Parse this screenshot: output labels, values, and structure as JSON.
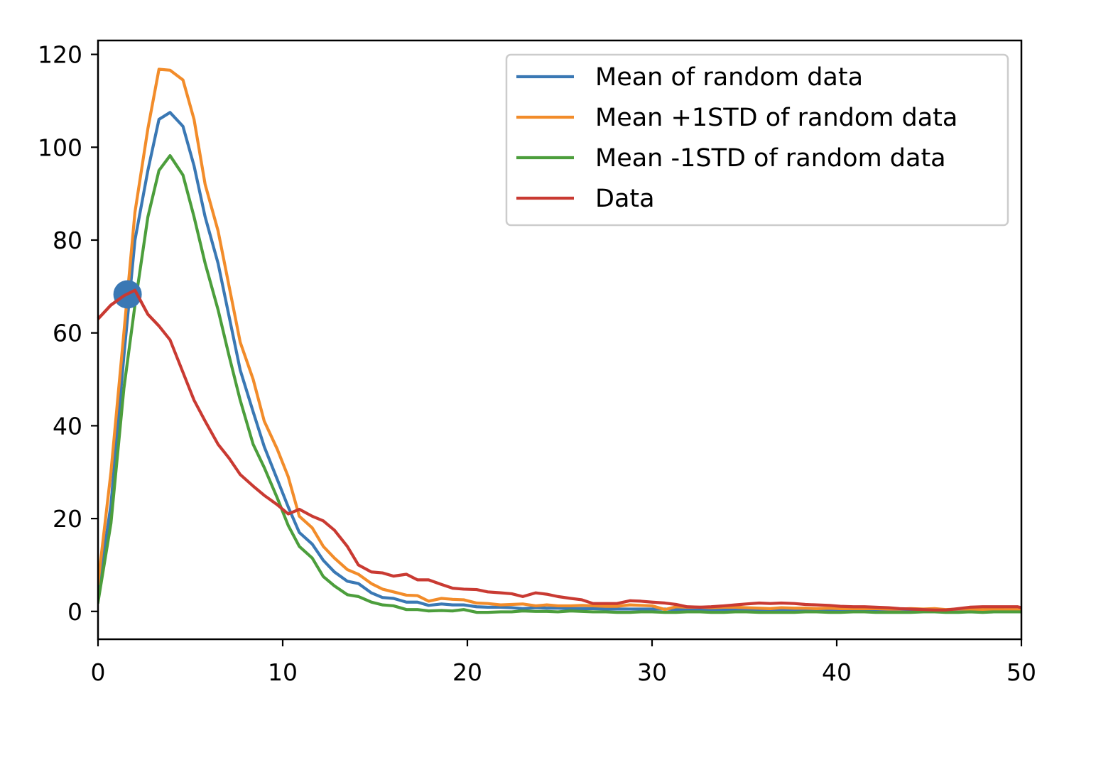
{
  "chart_data": {
    "type": "line",
    "xlim": [
      0,
      50
    ],
    "ylim": [
      -6,
      123
    ],
    "x_ticks": [
      "0",
      "10",
      "20",
      "30",
      "40",
      "50"
    ],
    "y_ticks": [
      "0",
      "20",
      "40",
      "60",
      "80",
      "100",
      "120"
    ],
    "x_tick_values": [
      0,
      10,
      20,
      30,
      40,
      50
    ],
    "y_tick_values": [
      0,
      20,
      40,
      60,
      80,
      100,
      120
    ],
    "grid": false,
    "legend_position": "top-right",
    "marker_point": {
      "x": 1.6,
      "y": 68.3,
      "color": "#3a78b4"
    },
    "series": [
      {
        "name": "Mean of random data",
        "color": "#3a78b4",
        "x": [
          0,
          0.7,
          1.4,
          2.0,
          2.7,
          3.3,
          3.9,
          4.6,
          5.2,
          5.8,
          6.5,
          7.1,
          7.7,
          8.4,
          9.0,
          9.7,
          10.3,
          10.9,
          11.6,
          12.2,
          12.8,
          13.5,
          14.1,
          14.8,
          15.4,
          16.0,
          16.7,
          17.3,
          17.9,
          18.6,
          19.2,
          19.8,
          20.5,
          21.1,
          21.8,
          22.4,
          23.0,
          23.7,
          24.3,
          24.9,
          25.6,
          26.2,
          26.8,
          27.5,
          28.1,
          28.8,
          29.4,
          30.0,
          30.7,
          31.3,
          31.9,
          32.6,
          33.2,
          33.9,
          34.5,
          35.1,
          35.8,
          36.4,
          37.0,
          37.7,
          38.3,
          38.9,
          39.6,
          40.2,
          40.9,
          41.5,
          42.1,
          42.8,
          43.4,
          44.0,
          44.7,
          45.3,
          45.9,
          46.6,
          47.2,
          47.9,
          48.5,
          49.1,
          49.8,
          50.0
        ],
        "values": [
          4.0,
          23.0,
          55.0,
          80.0,
          95.0,
          106.0,
          107.5,
          104.5,
          96.0,
          85.0,
          75.0,
          63.5,
          52.0,
          43.0,
          35.5,
          28.5,
          22.5,
          17.0,
          14.5,
          11.0,
          8.5,
          6.5,
          6.0,
          4.0,
          3.0,
          2.8,
          2.0,
          2.0,
          1.3,
          1.6,
          1.4,
          1.4,
          1.0,
          0.9,
          0.9,
          0.8,
          0.6,
          0.8,
          0.7,
          0.7,
          0.6,
          0.6,
          0.6,
          0.5,
          0.5,
          0.5,
          0.5,
          0.5,
          0.5,
          0.4,
          0.4,
          0.4,
          0.4,
          0.4,
          0.3,
          0.3,
          0.3,
          0.3,
          0.3,
          0.3,
          0.3,
          0.3,
          0.3,
          0.2,
          0.2,
          0.2,
          0.2,
          0.2,
          0.2,
          0.2,
          0.2,
          0.2,
          0.2,
          0.2,
          0.2,
          0.2,
          0.2,
          0.2,
          0.2,
          0.2
        ]
      },
      {
        "name": "Mean +1STD of random data",
        "color": "#f28c2a",
        "x": [
          0,
          0.7,
          1.4,
          2.0,
          2.7,
          3.3,
          3.9,
          4.6,
          5.2,
          5.8,
          6.5,
          7.1,
          7.7,
          8.4,
          9.0,
          9.7,
          10.3,
          10.9,
          11.6,
          12.2,
          12.8,
          13.5,
          14.1,
          14.8,
          15.4,
          16.0,
          16.7,
          17.3,
          17.9,
          18.6,
          19.2,
          19.8,
          20.5,
          21.1,
          21.8,
          22.4,
          23.0,
          23.7,
          24.3,
          24.9,
          25.6,
          26.2,
          26.8,
          27.5,
          28.1,
          28.8,
          29.4,
          30.0,
          30.7,
          31.3,
          31.9,
          32.6,
          33.2,
          33.9,
          34.5,
          35.1,
          35.8,
          36.4,
          37.0,
          37.7,
          38.3,
          38.9,
          39.6,
          40.2,
          40.9,
          41.5,
          42.1,
          42.8,
          43.4,
          44.0,
          44.7,
          45.3,
          45.9,
          46.6,
          47.2,
          47.9,
          48.5,
          49.1,
          49.8,
          50.0
        ],
        "values": [
          6.0,
          30.0,
          60.0,
          86.0,
          104.0,
          116.8,
          116.6,
          114.5,
          106.0,
          92.0,
          82.0,
          70.0,
          58.0,
          50.0,
          41.0,
          35.0,
          29.0,
          20.5,
          18.0,
          14.0,
          11.5,
          9.0,
          8.0,
          6.0,
          4.8,
          4.2,
          3.5,
          3.4,
          2.2,
          2.8,
          2.6,
          2.5,
          1.8,
          1.7,
          1.4,
          1.5,
          1.6,
          1.2,
          1.4,
          1.2,
          1.2,
          1.3,
          1.2,
          1.1,
          1.1,
          1.4,
          1.3,
          1.2,
          0.4,
          1.0,
          0.9,
          0.9,
          0.8,
          0.9,
          0.9,
          0.8,
          0.7,
          0.6,
          0.8,
          0.7,
          0.7,
          0.6,
          0.7,
          0.6,
          0.6,
          0.6,
          0.6,
          0.5,
          0.5,
          0.6,
          0.5,
          0.6,
          0.4,
          0.5,
          0.5,
          0.4,
          0.5,
          0.4,
          0.4,
          0.3
        ]
      },
      {
        "name": "Mean -1STD of random data",
        "color": "#4c9e3c",
        "x": [
          0,
          0.7,
          1.4,
          2.0,
          2.7,
          3.3,
          3.9,
          4.6,
          5.2,
          5.8,
          6.5,
          7.1,
          7.7,
          8.4,
          9.0,
          9.7,
          10.3,
          10.9,
          11.6,
          12.2,
          12.8,
          13.5,
          14.1,
          14.8,
          15.4,
          16.0,
          16.7,
          17.3,
          17.9,
          18.6,
          19.2,
          19.8,
          20.5,
          21.1,
          21.8,
          22.4,
          23.0,
          23.7,
          24.3,
          24.9,
          25.6,
          26.2,
          26.8,
          27.5,
          28.1,
          28.8,
          29.4,
          30.0,
          30.7,
          31.3,
          31.9,
          32.6,
          33.2,
          33.9,
          34.5,
          35.1,
          35.8,
          36.4,
          37.0,
          37.7,
          38.3,
          38.9,
          39.6,
          40.2,
          40.9,
          41.5,
          42.1,
          42.8,
          43.4,
          44.0,
          44.7,
          45.3,
          45.9,
          46.6,
          47.2,
          47.9,
          48.5,
          49.1,
          49.8,
          50.0
        ],
        "values": [
          2.0,
          19.0,
          48.0,
          66.0,
          85.0,
          95.0,
          98.2,
          94.0,
          85.0,
          75.0,
          65.0,
          55.0,
          45.5,
          36.0,
          31.0,
          24.5,
          18.5,
          14.0,
          11.5,
          7.5,
          5.5,
          3.6,
          3.2,
          2.0,
          1.4,
          1.2,
          0.4,
          0.4,
          0.1,
          0.2,
          0.1,
          0.4,
          -0.2,
          -0.2,
          -0.1,
          -0.1,
          0.1,
          0.0,
          0.0,
          -0.1,
          0.1,
          0.0,
          -0.1,
          -0.1,
          -0.2,
          -0.2,
          -0.1,
          -0.1,
          -0.2,
          -0.2,
          -0.1,
          -0.1,
          -0.2,
          -0.2,
          -0.1,
          -0.1,
          -0.2,
          -0.2,
          -0.2,
          -0.2,
          -0.1,
          -0.1,
          -0.2,
          -0.2,
          -0.1,
          -0.1,
          -0.2,
          -0.2,
          -0.2,
          -0.2,
          -0.1,
          -0.1,
          -0.2,
          -0.2,
          -0.1,
          -0.2,
          -0.1,
          -0.1,
          -0.1,
          -0.1
        ]
      },
      {
        "name": "Data",
        "color": "#c93a32",
        "x": [
          0,
          0.7,
          1.4,
          2.0,
          2.7,
          3.3,
          3.9,
          4.6,
          5.2,
          5.8,
          6.5,
          7.1,
          7.7,
          8.4,
          9.0,
          9.7,
          10.3,
          10.9,
          11.6,
          12.2,
          12.8,
          13.5,
          14.1,
          14.8,
          15.4,
          16.0,
          16.7,
          17.3,
          17.9,
          18.6,
          19.2,
          19.8,
          20.5,
          21.1,
          21.8,
          22.4,
          23.0,
          23.7,
          24.3,
          24.9,
          25.6,
          26.2,
          26.8,
          27.5,
          28.1,
          28.8,
          29.4,
          30.0,
          30.7,
          31.3,
          31.9,
          32.6,
          33.2,
          33.9,
          34.5,
          35.1,
          35.8,
          36.4,
          37.0,
          37.7,
          38.3,
          38.9,
          39.6,
          40.2,
          40.9,
          41.5,
          42.1,
          42.8,
          43.4,
          44.0,
          44.7,
          45.3,
          45.9,
          46.6,
          47.2,
          47.9,
          48.5,
          49.1,
          49.8,
          50.0
        ],
        "values": [
          63.0,
          66.0,
          68.0,
          69.2,
          64.0,
          61.5,
          58.5,
          51.5,
          45.5,
          41.0,
          36.0,
          33.0,
          29.5,
          27.0,
          25.0,
          23.0,
          21.0,
          22.0,
          20.5,
          19.5,
          17.5,
          14.0,
          10.0,
          8.5,
          8.3,
          7.6,
          8.0,
          6.8,
          6.8,
          5.8,
          5.0,
          4.8,
          4.7,
          4.2,
          4.0,
          3.8,
          3.2,
          4.0,
          3.7,
          3.2,
          2.8,
          2.5,
          1.7,
          1.7,
          1.7,
          2.3,
          2.2,
          2.0,
          1.8,
          1.5,
          1.0,
          0.9,
          1.0,
          1.2,
          1.4,
          1.6,
          1.8,
          1.7,
          1.8,
          1.7,
          1.5,
          1.4,
          1.3,
          1.1,
          1.0,
          1.0,
          0.9,
          0.8,
          0.6,
          0.5,
          0.4,
          0.3,
          0.3,
          0.6,
          0.9,
          1.0,
          1.0,
          1.0,
          1.0,
          0.8
        ]
      }
    ]
  }
}
